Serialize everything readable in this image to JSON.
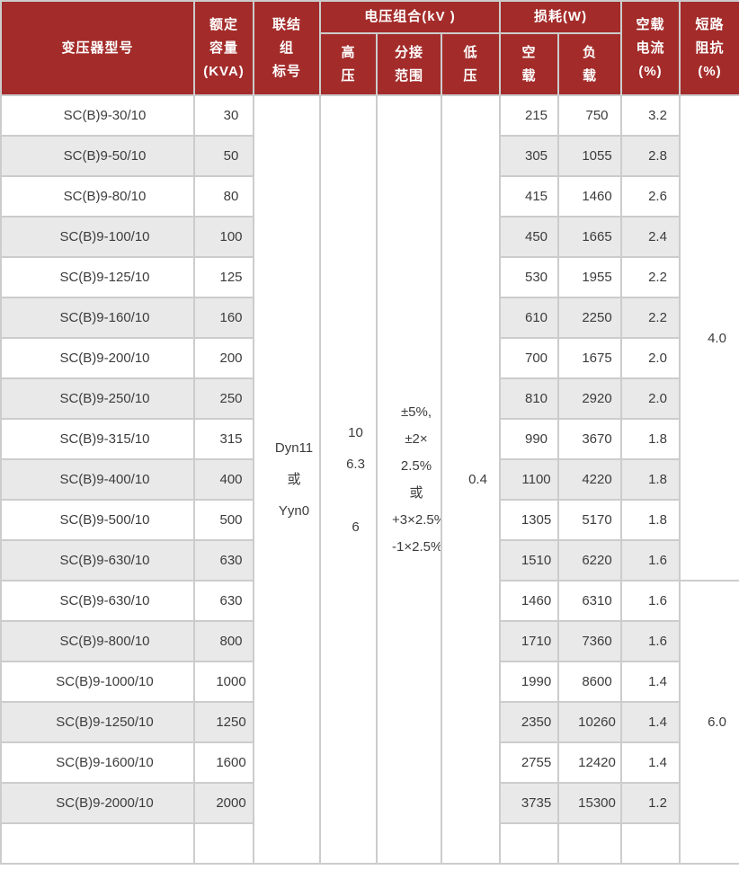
{
  "colors": {
    "header_bg": "#a32c2a",
    "header_text": "#ffffff",
    "row_alt_bg": "#e9e9e9",
    "cell_border": "#cccccc",
    "body_text": "#3c3c3c"
  },
  "table": {
    "header": {
      "model": "变压器型号",
      "capacity_lines": [
        "额定",
        "容量",
        "(KVA)"
      ],
      "vector_group_lines": [
        "联结",
        "组",
        "标号"
      ],
      "voltage_group": "电压组合(kV )",
      "hv_lines": [
        "高",
        "压"
      ],
      "tap_lines": [
        "分接",
        "范围"
      ],
      "lv_lines": [
        "低",
        "压"
      ],
      "loss_group": "损耗(W)",
      "noload_lines": [
        "空",
        "载"
      ],
      "load_lines": [
        "负",
        "载"
      ],
      "noload_current_lines": [
        "空载",
        "电流",
        "(%)"
      ],
      "impedance_lines": [
        "短路",
        "阻抗",
        "(%)"
      ]
    },
    "merged": {
      "vector_group_lines": [
        "Dyn11",
        "或",
        "Yyn0"
      ],
      "hv_lines": [
        "10",
        "6.3",
        "",
        "6"
      ],
      "tap_lines": [
        "±5%,",
        "±2×",
        "2.5%",
        "或",
        "+3×2.5%",
        "-1×2.5%"
      ],
      "lv": "0.4",
      "impedance_group1": "4.0",
      "impedance_group1_rows": 12,
      "impedance_group2": "6.0"
    },
    "rows": [
      {
        "model": "SC(B)9-30/10",
        "kva": "30",
        "noload": "215",
        "load": "750",
        "current": "3.2"
      },
      {
        "model": "SC(B)9-50/10",
        "kva": "50",
        "noload": "305",
        "load": "1055",
        "current": "2.8"
      },
      {
        "model": "SC(B)9-80/10",
        "kva": "80",
        "noload": "415",
        "load": "1460",
        "current": "2.6"
      },
      {
        "model": "SC(B)9-100/10",
        "kva": "100",
        "noload": "450",
        "load": "1665",
        "current": "2.4"
      },
      {
        "model": "SC(B)9-125/10",
        "kva": "125",
        "noload": "530",
        "load": "1955",
        "current": "2.2"
      },
      {
        "model": "SC(B)9-160/10",
        "kva": "160",
        "noload": "610",
        "load": "2250",
        "current": "2.2"
      },
      {
        "model": "SC(B)9-200/10",
        "kva": "200",
        "noload": "700",
        "load": "1675",
        "current": "2.0"
      },
      {
        "model": "SC(B)9-250/10",
        "kva": "250",
        "noload": "810",
        "load": "2920",
        "current": "2.0"
      },
      {
        "model": "SC(B)9-315/10",
        "kva": "315",
        "noload": "990",
        "load": "3670",
        "current": "1.8"
      },
      {
        "model": "SC(B)9-400/10",
        "kva": "400",
        "noload": "1100",
        "load": "4220",
        "current": "1.8"
      },
      {
        "model": "SC(B)9-500/10",
        "kva": "500",
        "noload": "1305",
        "load": "5170",
        "current": "1.8"
      },
      {
        "model": "SC(B)9-630/10",
        "kva": "630",
        "noload": "1510",
        "load": "6220",
        "current": "1.6"
      },
      {
        "model": "SC(B)9-630/10",
        "kva": "630",
        "noload": "1460",
        "load": "6310",
        "current": "1.6"
      },
      {
        "model": "SC(B)9-800/10",
        "kva": "800",
        "noload": "1710",
        "load": "7360",
        "current": "1.6"
      },
      {
        "model": "SC(B)9-1000/10",
        "kva": "1000",
        "noload": "1990",
        "load": "8600",
        "current": "1.4"
      },
      {
        "model": "SC(B)9-1250/10",
        "kva": "1250",
        "noload": "2350",
        "load": "10260",
        "current": "1.4"
      },
      {
        "model": "SC(B)9-1600/10",
        "kva": "1600",
        "noload": "2755",
        "load": "12420",
        "current": "1.4"
      },
      {
        "model": "SC(B)9-2000/10",
        "kva": "2000",
        "noload": "3735",
        "load": "15300",
        "current": "1.2"
      },
      {
        "model": "",
        "kva": "",
        "noload": "",
        "load": "",
        "current": ""
      }
    ]
  }
}
